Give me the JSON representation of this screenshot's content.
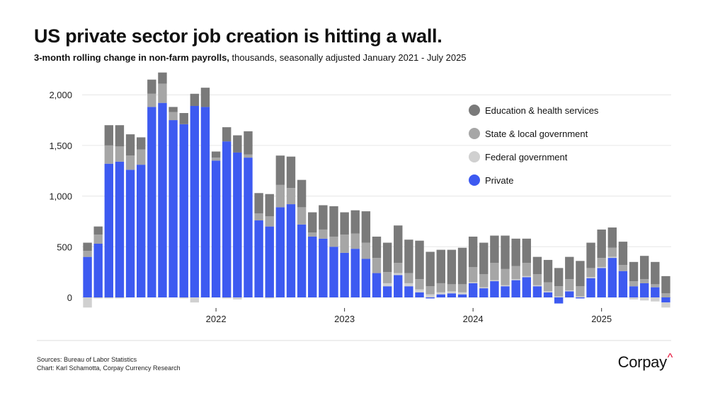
{
  "header": {
    "title": "US private sector job creation is hitting a wall.",
    "subtitle_bold": "3-month rolling change in non-farm payrolls,",
    "subtitle_rest": " thousands, seasonally adjusted January 2021 - July 2025"
  },
  "footer": {
    "sources": "Sources: Bureau of Labor Statistics",
    "credit": "Chart: Karl Schamotta, Corpay Currency Research",
    "logo": "Corpay",
    "logo_mark": "^"
  },
  "colors": {
    "education_health": "#7a7a7a",
    "state_local": "#a6a6a6",
    "federal": "#d0d0d0",
    "private": "#3d5af1",
    "grid": "#e6e6e6"
  },
  "chart_data": {
    "type": "bar",
    "stacked": true,
    "title": "US private sector job creation is hitting a wall.",
    "xlabel": "",
    "ylabel": "",
    "ylim": [
      -100,
      2200
    ],
    "yticks": [
      0,
      500,
      1000,
      1500,
      2000
    ],
    "ytick_labels": [
      "0",
      "500",
      "1,000",
      "1,500",
      "2,000"
    ],
    "xtick_labels": [
      "2022",
      "2023",
      "2024",
      "2025"
    ],
    "xtick_categories": [
      "2022-01",
      "2023-01",
      "2024-01",
      "2025-01"
    ],
    "legend_position": "right",
    "categories": [
      "2021-01",
      "2021-02",
      "2021-03",
      "2021-04",
      "2021-05",
      "2021-06",
      "2021-07",
      "2021-08",
      "2021-09",
      "2021-10",
      "2021-11",
      "2021-12",
      "2022-01",
      "2022-02",
      "2022-03",
      "2022-04",
      "2022-05",
      "2022-06",
      "2022-07",
      "2022-08",
      "2022-09",
      "2022-10",
      "2022-11",
      "2022-12",
      "2023-01",
      "2023-02",
      "2023-03",
      "2023-04",
      "2023-05",
      "2023-06",
      "2023-07",
      "2023-08",
      "2023-09",
      "2023-10",
      "2023-11",
      "2023-12",
      "2024-01",
      "2024-02",
      "2024-03",
      "2024-04",
      "2024-05",
      "2024-06",
      "2024-07",
      "2024-08",
      "2024-09",
      "2024-10",
      "2024-11",
      "2024-12",
      "2025-01",
      "2025-02",
      "2025-03",
      "2025-04",
      "2025-05",
      "2025-06",
      "2025-07"
    ],
    "series": [
      {
        "name": "Private",
        "values": [
          400,
          530,
          1320,
          1340,
          1260,
          1310,
          1880,
          1920,
          1750,
          1710,
          1890,
          1880,
          1350,
          1540,
          1430,
          1380,
          760,
          700,
          890,
          920,
          720,
          600,
          580,
          500,
          440,
          480,
          380,
          240,
          110,
          220,
          110,
          50,
          -10,
          30,
          40,
          30,
          140,
          90,
          160,
          110,
          170,
          200,
          110,
          50,
          -60,
          60,
          -10,
          190,
          290,
          390,
          260,
          110,
          140,
          100,
          -50
        ]
      },
      {
        "name": "Federal government",
        "values": [
          -100,
          -10,
          -10,
          -10,
          0,
          0,
          0,
          0,
          0,
          -10,
          -50,
          0,
          0,
          -10,
          -20,
          0,
          0,
          -10,
          0,
          0,
          0,
          0,
          0,
          0,
          0,
          0,
          0,
          0,
          30,
          20,
          30,
          30,
          30,
          20,
          20,
          20,
          10,
          10,
          10,
          10,
          10,
          10,
          10,
          10,
          10,
          10,
          10,
          10,
          10,
          10,
          0,
          -20,
          -30,
          -40,
          -50
        ]
      },
      {
        "name": "State & local government",
        "values": [
          60,
          90,
          180,
          150,
          140,
          150,
          130,
          190,
          80,
          0,
          0,
          0,
          30,
          0,
          0,
          30,
          70,
          100,
          220,
          160,
          170,
          40,
          90,
          100,
          180,
          150,
          160,
          150,
          110,
          100,
          100,
          100,
          80,
          90,
          70,
          80,
          150,
          130,
          170,
          160,
          130,
          130,
          110,
          90,
          100,
          110,
          100,
          90,
          90,
          90,
          60,
          50,
          40,
          30,
          40
        ]
      },
      {
        "name": "Education & health services",
        "values": [
          80,
          80,
          200,
          210,
          210,
          120,
          140,
          110,
          50,
          110,
          120,
          190,
          60,
          140,
          170,
          230,
          200,
          220,
          290,
          310,
          270,
          200,
          240,
          300,
          220,
          230,
          310,
          210,
          290,
          370,
          330,
          380,
          340,
          330,
          340,
          360,
          300,
          310,
          270,
          330,
          270,
          240,
          170,
          220,
          180,
          220,
          250,
          250,
          280,
          200,
          230,
          190,
          230,
          220,
          170
        ]
      }
    ]
  }
}
